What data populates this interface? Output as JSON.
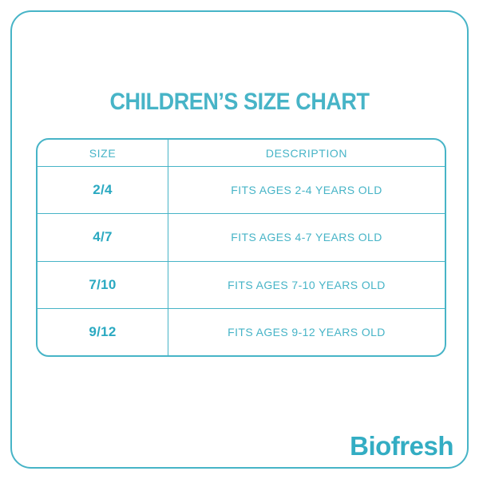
{
  "title": "CHILDREN’S SIZE CHART",
  "chart_data": {
    "type": "table",
    "title": "CHILDREN’S SIZE CHART",
    "columns": [
      "SIZE",
      "DESCRIPTION"
    ],
    "rows": [
      [
        "2/4",
        "FITS AGES 2-4 YEARS OLD"
      ],
      [
        "4/7",
        "FITS AGES 4-7 YEARS OLD"
      ],
      [
        "7/10",
        "FITS AGES 7-10 YEARS OLD"
      ],
      [
        "9/12",
        "FITS AGES 9-12 YEARS OLD"
      ]
    ]
  },
  "brand": {
    "logo_text": "Biofresh"
  },
  "colors": {
    "accent": "#47b4c7",
    "accent-strong": "#2aa9c1",
    "logo": "#33adc3",
    "background": "#ffffff"
  }
}
